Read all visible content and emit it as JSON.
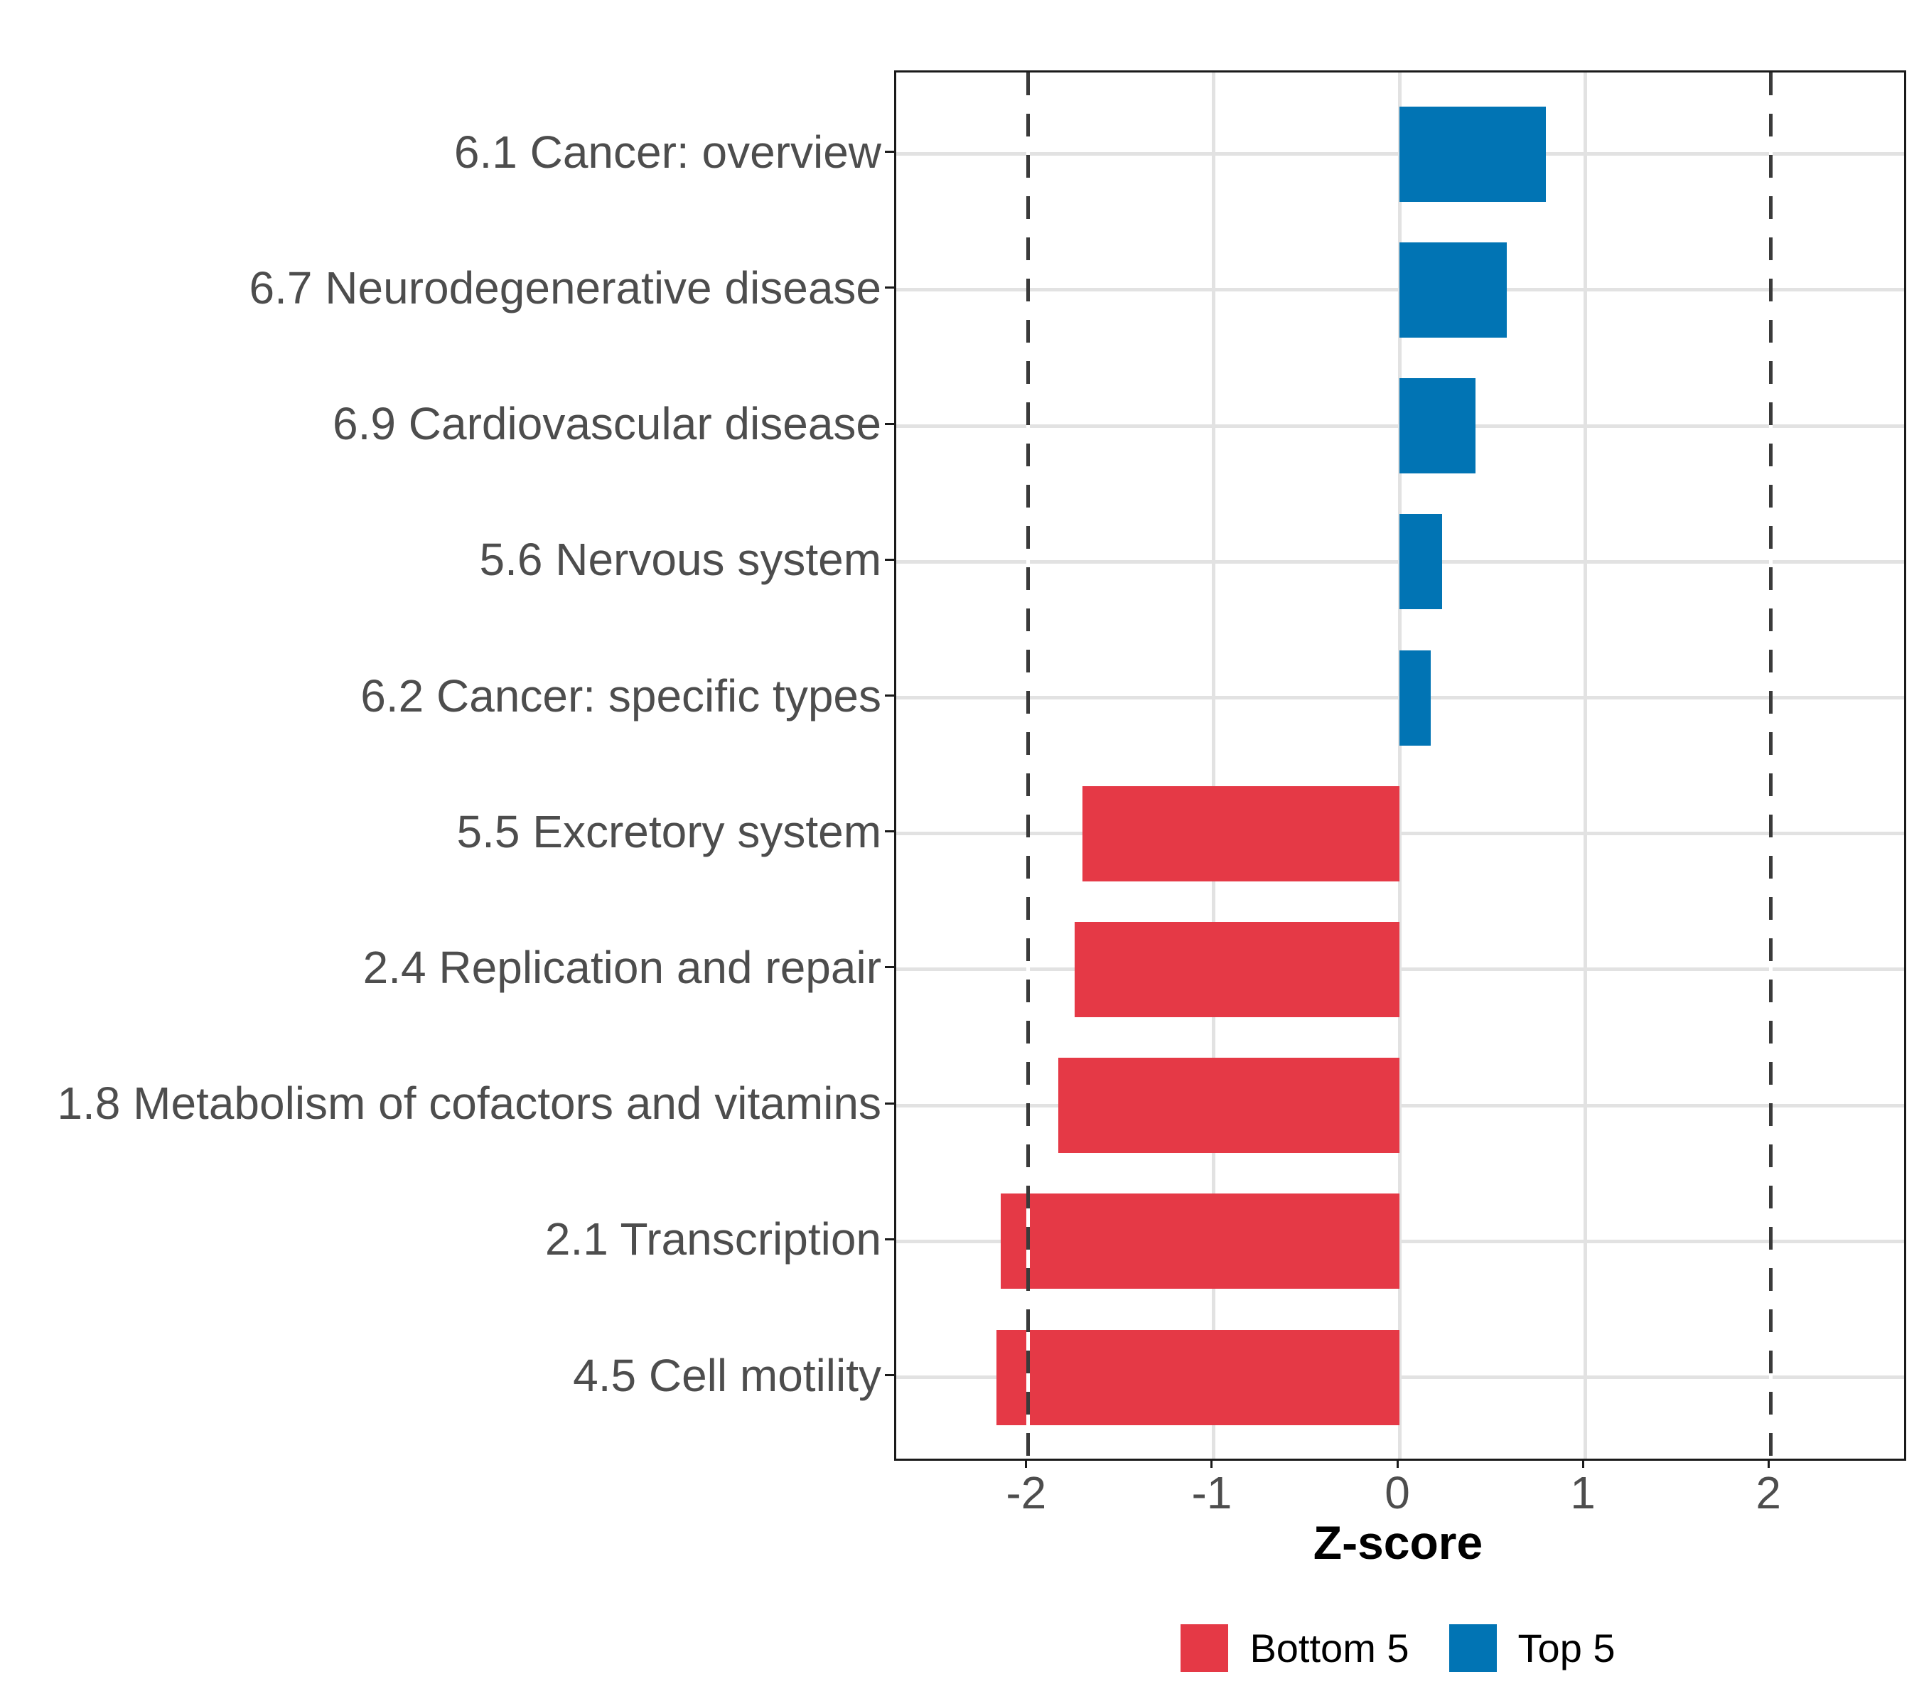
{
  "chart_data": {
    "type": "bar",
    "orientation": "horizontal",
    "title": "",
    "xlabel": "Z-score",
    "x_ticks": [
      -2,
      -1,
      0,
      1,
      2
    ],
    "x_tick_labels": [
      "-2",
      "-1",
      "0",
      "1",
      "2"
    ],
    "xlim": [
      -2.71,
      2.72
    ],
    "reference_lines": [
      -2,
      2
    ],
    "grid": true,
    "legend_position": "bottom",
    "categories": [
      "6.1 Cancer: overview",
      "6.7 Neurodegenerative disease",
      "6.9 Cardiovascular disease",
      "5.6 Nervous system",
      "6.2 Cancer: specific types",
      "5.5 Excretory system",
      "2.4 Replication and repair",
      "1.8 Metabolism of cofactors and vitamins",
      "2.1 Transcription",
      "4.5 Cell motility"
    ],
    "values": [
      0.79,
      0.58,
      0.41,
      0.23,
      0.17,
      -1.71,
      -1.75,
      -1.84,
      -2.15,
      -2.17
    ],
    "groups": [
      "Top 5",
      "Top 5",
      "Top 5",
      "Top 5",
      "Top 5",
      "Bottom 5",
      "Bottom 5",
      "Bottom 5",
      "Bottom 5",
      "Bottom 5"
    ],
    "colors": {
      "Bottom 5": "#E53946",
      "Top 5": "#0174B4"
    },
    "legend": [
      {
        "label": "Bottom 5",
        "color": "#E53946"
      },
      {
        "label": "Top 5",
        "color": "#0174B4"
      }
    ]
  }
}
